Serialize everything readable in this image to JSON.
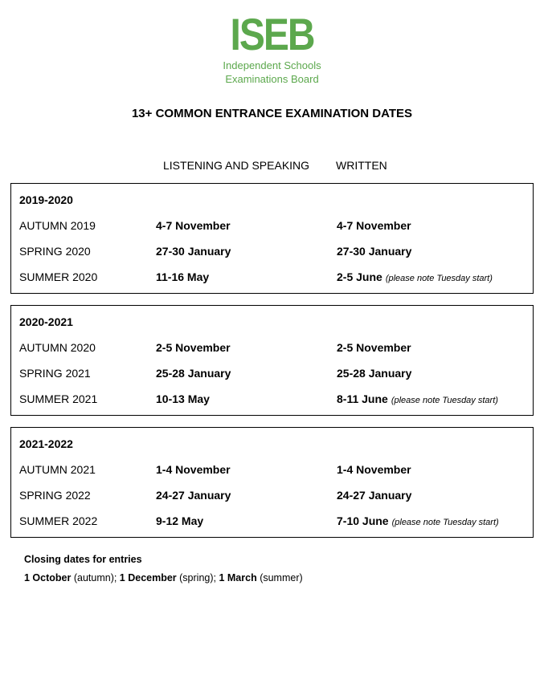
{
  "logo": {
    "main": "ISEB",
    "sub1": "Independent Schools",
    "sub2": "Examinations Board",
    "color": "#5ca84d"
  },
  "title": "13+ COMMON ENTRANCE EXAMINATION DATES",
  "columns": {
    "listening": "LISTENING AND SPEAKING",
    "written": "WRITTEN"
  },
  "blocks": [
    {
      "year": "2019-2020",
      "rows": [
        {
          "term": "AUTUMN 2019",
          "listen": "4-7 November",
          "written": "4-7 November",
          "note": ""
        },
        {
          "term": "SPRING 2020",
          "listen": "27-30 January",
          "written": "27-30 January",
          "note": ""
        },
        {
          "term": "SUMMER 2020",
          "listen": "11-16 May",
          "written": "2-5 June",
          "note": "(please note Tuesday start)"
        }
      ]
    },
    {
      "year": "2020-2021",
      "rows": [
        {
          "term": "AUTUMN 2020",
          "listen": "2-5 November",
          "written": "2-5 November",
          "note": ""
        },
        {
          "term": "SPRING 2021",
          "listen": "25-28 January",
          "written": "25-28 January",
          "note": ""
        },
        {
          "term": "SUMMER 2021",
          "listen": "10-13 May",
          "written": "8-11 June",
          "note": "(please note Tuesday start)"
        }
      ]
    },
    {
      "year": "2021-2022",
      "rows": [
        {
          "term": "AUTUMN 2021",
          "listen": "1-4 November",
          "written": "1-4 November",
          "note": ""
        },
        {
          "term": "SPRING 2022",
          "listen": "24-27 January",
          "written": "24-27 January",
          "note": ""
        },
        {
          "term": "SUMMER 2022",
          "listen": "9-12 May",
          "written": "7-10 June",
          "note": "(please note Tuesday start)"
        }
      ]
    }
  ],
  "footer": {
    "title": "Closing dates for entries",
    "d1": "1 October",
    "t1": " (autumn); ",
    "d2": "1 December",
    "t2": " (spring); ",
    "d3": "1 March",
    "t3": " (summer)"
  },
  "style": {
    "border_color": "#000000",
    "background": "#ffffff",
    "text_color": "#000000",
    "title_fontsize": 15,
    "body_fontsize": 14,
    "note_fontsize": 11,
    "footer_fontsize": 12.5,
    "logo_main_fontsize": 48,
    "logo_sub_fontsize": 13
  }
}
